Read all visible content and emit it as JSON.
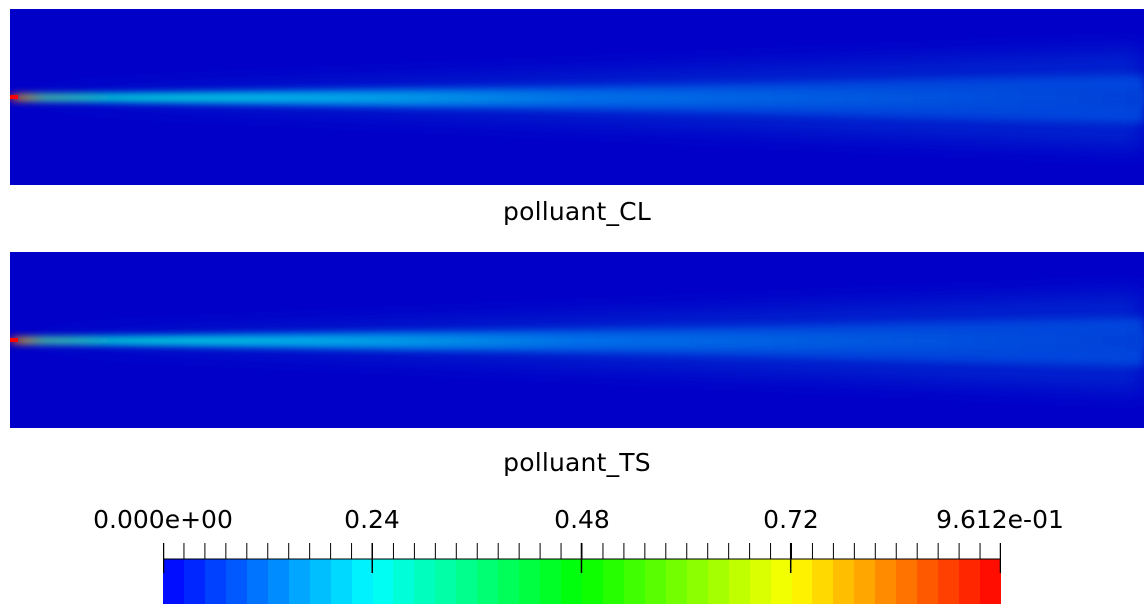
{
  "panels": [
    {
      "id": "cl",
      "title": "polluant_CL"
    },
    {
      "id": "ts",
      "title": "polluant_TS"
    }
  ],
  "colorbar": {
    "min_label": "0.000e+00",
    "max_label": "9.612e-01",
    "tick_labels": [
      "0.000e+00",
      "0.24",
      "0.48",
      "0.72",
      "9.612e-01"
    ],
    "tick_values": [
      0,
      0.24,
      0.48,
      0.72,
      0.9612
    ],
    "range": [
      0,
      0.9612
    ],
    "colormap": "rainbow (blue-cyan-green-yellow-red)",
    "colors": [
      "#0000ff",
      "#00ffff",
      "#00ff00",
      "#ffff00",
      "#ff0000"
    ],
    "band_count": 40
  },
  "background_color": "#0000c8"
}
